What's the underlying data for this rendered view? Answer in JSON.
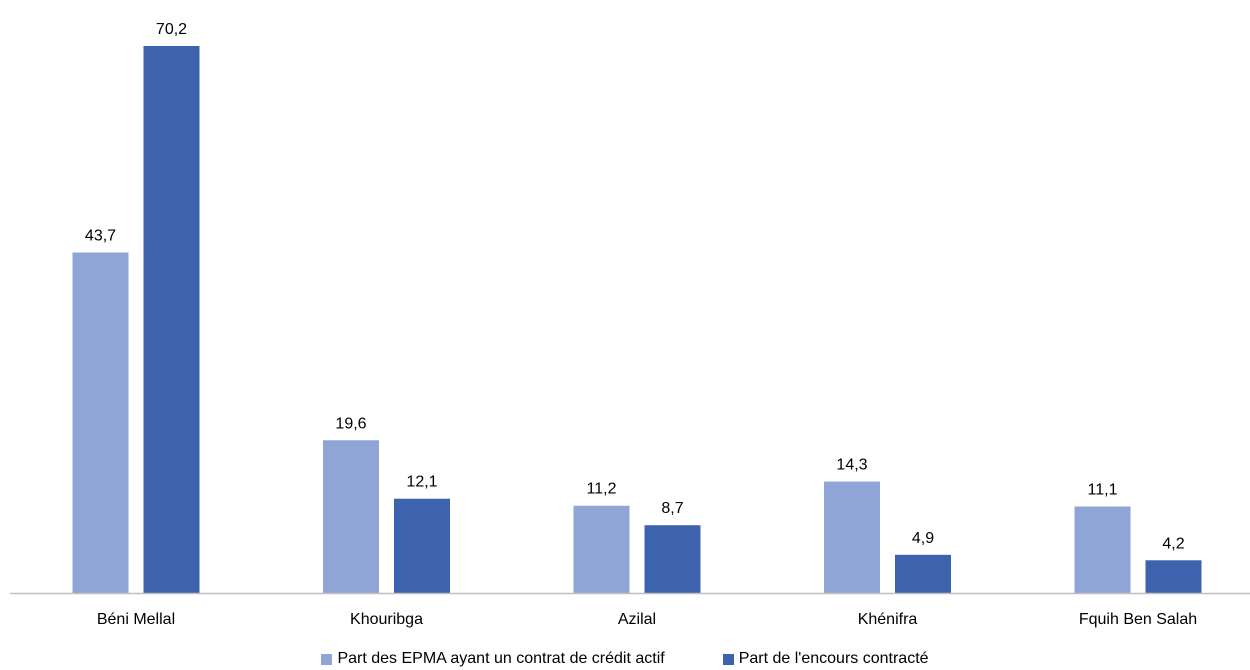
{
  "chart_data": {
    "type": "bar",
    "categories": [
      "Béni Mellal",
      "Khouribga",
      "Azilal",
      "Khénifra",
      "Fquih Ben Salah"
    ],
    "series": [
      {
        "name": "Part des EPMA ayant un contrat de crédit actif",
        "color": "#8FA5D6",
        "values": [
          43.7,
          19.6,
          11.2,
          14.3,
          11.1
        ],
        "labels": [
          "43,7",
          "19,6",
          "11,2",
          "14,3",
          "11,1"
        ]
      },
      {
        "name": "Part de l'encours contracté",
        "color": "#3D63AF",
        "values": [
          70.2,
          12.1,
          8.7,
          4.9,
          4.2
        ],
        "labels": [
          "70,2",
          "12,1",
          "8,7",
          "4,9",
          "4,2"
        ]
      }
    ],
    "ylim": [
      0,
      70.2
    ],
    "grid": false,
    "legend_position": "bottom",
    "axis_color": "#BFBFBF"
  }
}
